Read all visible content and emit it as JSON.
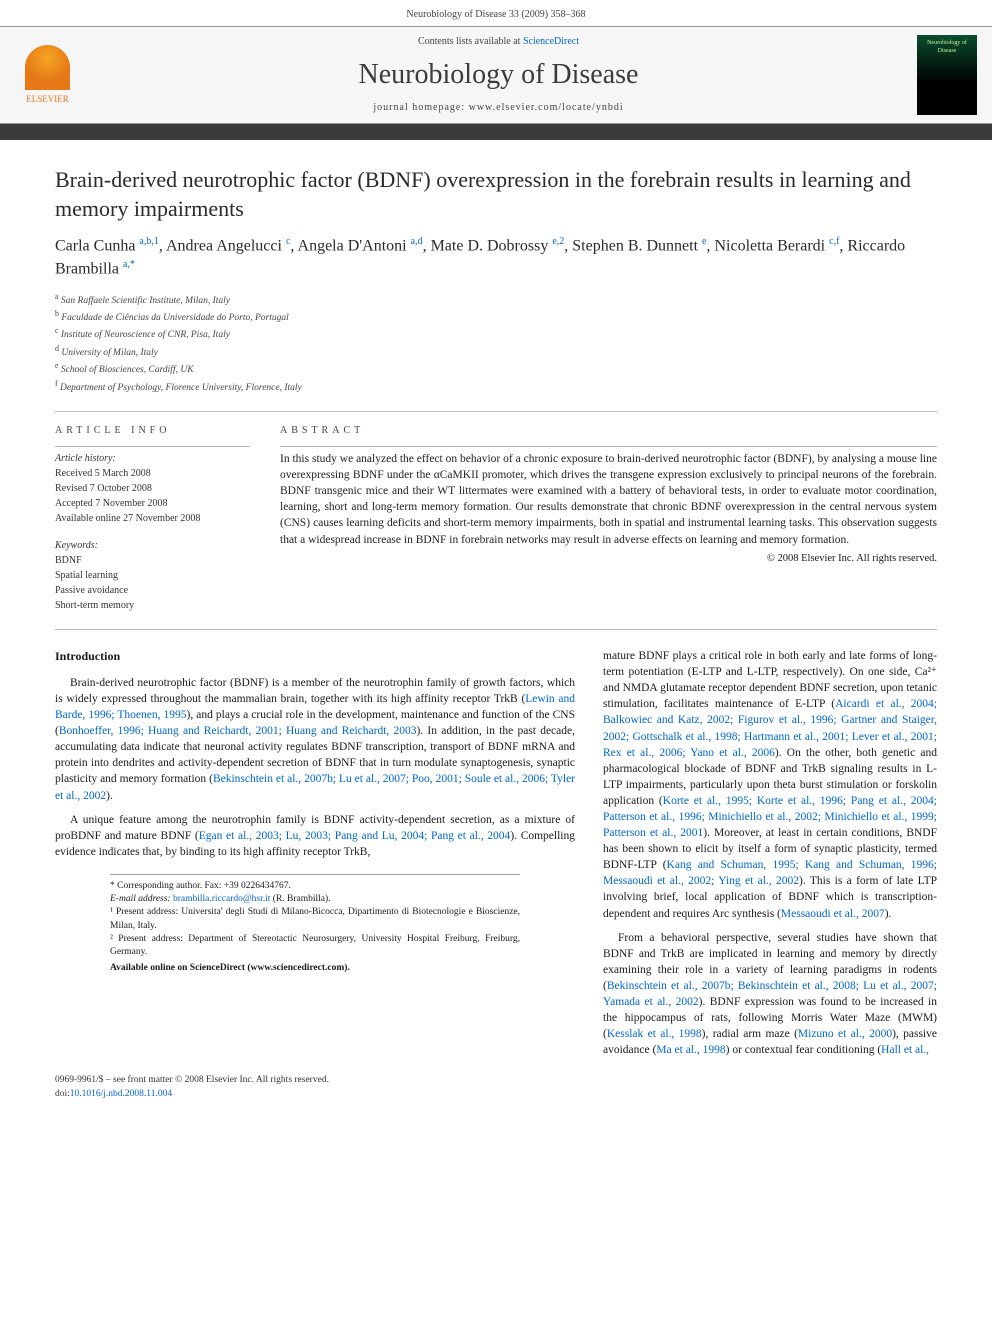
{
  "running_header": "Neurobiology of Disease 33 (2009) 358–368",
  "contents_line_prefix": "Contents lists available at ",
  "contents_link": "ScienceDirect",
  "journal_name": "Neurobiology of Disease",
  "homepage_prefix": "journal homepage: ",
  "homepage_url": "www.elsevier.com/locate/ynbdi",
  "elsevier_label": "ELSEVIER",
  "cover_label": "Neurobiology of Disease",
  "title": "Brain-derived neurotrophic factor (BDNF) overexpression in the forebrain results in learning and memory impairments",
  "authors_html": "Carla Cunha <sup>a,b,1</sup>, Andrea Angelucci <sup>c</sup>, Angela D'Antoni <sup>a,d</sup>, Mate D. Dobrossy <sup>e,2</sup>, Stephen B. Dunnett <sup>e</sup>, Nicoletta Berardi <sup>c,f</sup>, Riccardo Brambilla <sup>a,*</sup>",
  "affiliations": [
    "a San Raffaele Scientific Institute, Milan, Italy",
    "b Faculdade de Ciências da Universidade do Porto, Portugal",
    "c Institute of Neuroscience of CNR, Pisa, Italy",
    "d University of Milan, Italy",
    "e School of Biosciences, Cardiff, UK",
    "f Department of Psychology, Florence University, Florence, Italy"
  ],
  "article_info_heading": "ARTICLE INFO",
  "abstract_heading": "ABSTRACT",
  "history_label": "Article history:",
  "history": [
    "Received 5 March 2008",
    "Revised 7 October 2008",
    "Accepted 7 November 2008",
    "Available online 27 November 2008"
  ],
  "keywords_label": "Keywords:",
  "keywords": [
    "BDNF",
    "Spatial learning",
    "Passive avoidance",
    "Short-term memory"
  ],
  "abstract": "In this study we analyzed the effect on behavior of a chronic exposure to brain-derived neurotrophic factor (BDNF), by analysing a mouse line overexpressing BDNF under the αCaMKII promoter, which drives the transgene expression exclusively to principal neurons of the forebrain. BDNF transgenic mice and their WT littermates were examined with a battery of behavioral tests, in order to evaluate motor coordination, learning, short and long-term memory formation. Our results demonstrate that chronic BDNF overexpression in the central nervous system (CNS) causes learning deficits and short-term memory impairments, both in spatial and instrumental learning tasks. This observation suggests that a widespread increase in BDNF in forebrain networks may result in adverse effects on learning and memory formation.",
  "copyright": "© 2008 Elsevier Inc. All rights reserved.",
  "intro_heading": "Introduction",
  "col1_p1_a": "Brain-derived neurotrophic factor (BDNF) is a member of the neurotrophin family of growth factors, which is widely expressed throughout the mammalian brain, together with its high affinity receptor TrkB (",
  "col1_p1_ref1": "Lewin and Barde, 1996; Thoenen, 1995",
  "col1_p1_b": "), and plays a crucial role in the development, maintenance and function of the CNS (",
  "col1_p1_ref2": "Bonhoeffer, 1996; Huang and Reichardt, 2001; Huang and Reichardt, 2003",
  "col1_p1_c": "). In addition, in the past decade, accumulating data indicate that neuronal activity regulates BDNF transcription, transport of BDNF mRNA and protein into dendrites and activity-dependent secretion of BDNF that in turn modulate synaptogenesis, synaptic plasticity and memory formation (",
  "col1_p1_ref3": "Bekinschtein et al., 2007b; Lu et al., 2007; Poo, 2001; Soule et al., 2006; Tyler et al., 2002",
  "col1_p1_d": ").",
  "col1_p2_a": "A unique feature among the neurotrophin family is BDNF activity-dependent secretion, as a mixture of proBDNF and mature BDNF (",
  "col1_p2_ref1": "Egan et al., 2003; Lu, 2003; Pang and Lu, 2004; Pang et al., 2004",
  "col1_p2_b": "). Compelling evidence indicates that, by binding to its high affinity receptor TrkB,",
  "col2_p1_a": "mature BDNF plays a critical role in both early and late forms of long-term potentiation (E-LTP and L-LTP, respectively). On one side, Ca²⁺ and NMDA glutamate receptor dependent BDNF secretion, upon tetanic stimulation, facilitates maintenance of E-LTP (",
  "col2_p1_ref1": "Aicardi et al., 2004; Balkowiec and Katz, 2002; Figurov et al., 1996; Gartner and Staiger, 2002; Gottschalk et al., 1998; Hartmann et al., 2001; Lever et al., 2001; Rex et al., 2006; Yano et al., 2006",
  "col2_p1_b": "). On the other, both genetic and pharmacological blockade of BDNF and TrkB signaling results in L-LTP impairments, particularly upon theta burst stimulation or forskolin application (",
  "col2_p1_ref2": "Korte et al., 1995; Korte et al., 1996; Pang et al., 2004; Patterson et al., 1996; Minichiello et al., 2002; Minichiello et al., 1999; Patterson et al., 2001",
  "col2_p1_c": "). Moreover, at least in certain conditions, BNDF has been shown to elicit by itself a form of synaptic plasticity, termed BDNF-LTP (",
  "col2_p1_ref3": "Kang and Schuman, 1995; Kang and Schuman, 1996; Messaoudi et al., 2002; Ying et al., 2002",
  "col2_p1_d": "). This is a form of late LTP involving brief, local application of BDNF which is transcription-dependent and requires Arc synthesis (",
  "col2_p1_ref4": "Messaoudi et al., 2007",
  "col2_p1_e": ").",
  "col2_p2_a": "From a behavioral perspective, several studies have shown that BDNF and TrkB are implicated in learning and memory by directly examining their role in a variety of learning paradigms in rodents (",
  "col2_p2_ref1": "Bekinschtein et al., 2007b; Bekinschtein et al., 2008; Lu et al., 2007; Yamada et al., 2002",
  "col2_p2_b": "). BDNF expression was found to be increased in the hippocampus of rats, following Morris Water Maze (MWM) (",
  "col2_p2_ref2": "Kesslak et al., 1998",
  "col2_p2_c": "), radial arm maze (",
  "col2_p2_ref3": "Mizuno et al., 2000",
  "col2_p2_d": "), passive avoidance (",
  "col2_p2_ref4": "Ma et al., 1998",
  "col2_p2_e": ") or contextual fear conditioning (",
  "col2_p2_ref5": "Hall et al.,",
  "footnotes": {
    "corr": "* Corresponding author. Fax: +39 0226434767.",
    "email_label": "E-mail address: ",
    "email": "brambilla.riccardo@hsr.it",
    "email_suffix": " (R. Brambilla).",
    "n1": "¹ Present address: Universita' degli Studi di Milano-Bicocca, Dipartimento di Biotecnologie e Bioscienze, Milan, Italy.",
    "n2": "² Present address: Department of Stereotactic Neurosurgery, University Hospital Freiburg, Freiburg, Germany.",
    "avail": "Available online on ScienceDirect (www.sciencedirect.com)."
  },
  "bottom": {
    "issn_line": "0969-9961/$ – see front matter © 2008 Elsevier Inc. All rights reserved.",
    "doi_prefix": "doi:",
    "doi": "10.1016/j.nbd.2008.11.004"
  }
}
